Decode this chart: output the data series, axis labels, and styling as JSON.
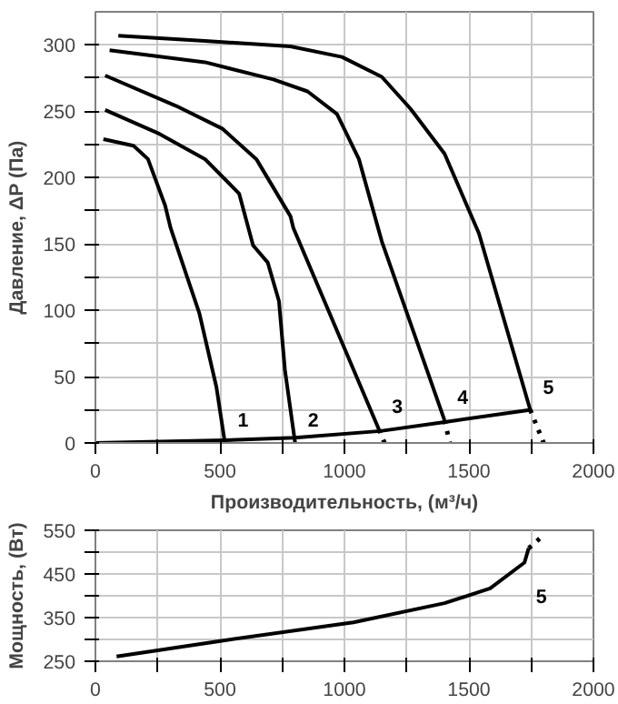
{
  "chart_data": [
    {
      "type": "line",
      "ylabel": "Давление, ΔP (Па)",
      "xlabel": "Производительность, (м³/ч)",
      "xlim": [
        0,
        2000
      ],
      "ylim": [
        0,
        325
      ],
      "xticks": [
        0,
        {
          "value": 250,
          "label": null
        },
        500,
        {
          "value": 750,
          "label": null
        },
        1000,
        {
          "value": 1250,
          "label": null
        },
        1500,
        {
          "value": 1750,
          "label": null
        },
        2000
      ],
      "yticks": [
        0,
        {
          "value": 25,
          "label": null
        },
        50,
        {
          "value": 75,
          "label": null
        },
        100,
        {
          "value": 125,
          "label": null
        },
        150,
        {
          "value": 175,
          "label": null
        },
        200,
        {
          "value": 225,
          "label": null
        },
        250,
        {
          "value": 275,
          "label": null
        },
        300
      ],
      "grid": true,
      "marker": "none",
      "line_style": "solid",
      "series": [
        {
          "name": "1",
          "color": "#000000",
          "x": [
            32,
            153,
            211,
            280,
            302,
            417,
            486,
            520
          ],
          "values": [
            229,
            224,
            214,
            179,
            162,
            98,
            42,
            0
          ]
        },
        {
          "name": "2",
          "color": "#000000",
          "x": [
            39,
            257,
            440,
            577,
            633,
            692,
            737,
            761,
            802
          ],
          "values": [
            251,
            233,
            214,
            188,
            149,
            136,
            107,
            55,
            0
          ]
        },
        {
          "name": "3",
          "color": "#000000",
          "x": [
            39,
            325,
            509,
            646,
            783,
            795,
            1139
          ],
          "values": [
            277,
            254,
            237,
            214,
            171,
            162,
            10
          ]
        },
        {
          "color": "#000000",
          "x": [
            1139,
            1161
          ],
          "values": [
            10,
            0
          ],
          "line_style": "dotted"
        },
        {
          "name": "4",
          "color": "#000000",
          "x": [
            57,
            440,
            715,
            852,
            970,
            1058,
            1150,
            1402
          ],
          "values": [
            296,
            287,
            274,
            265,
            248,
            214,
            152,
            17
          ]
        },
        {
          "color": "#000000",
          "x": [
            1402,
            1423
          ],
          "values": [
            17,
            0
          ],
          "line_style": "dotted"
        },
        {
          "name": "5",
          "color": "#000000",
          "x": [
            92,
            440,
            783,
            990,
            1150,
            1265,
            1402,
            1540,
            1746
          ],
          "values": [
            307,
            303,
            299,
            291,
            276,
            252,
            218,
            158,
            25
          ]
        },
        {
          "color": "#000000",
          "x": [
            1746,
            1800
          ],
          "values": [
            25,
            0
          ],
          "line_style": "dotted"
        },
        {
          "color": "#000000",
          "x": [
            0,
            520,
            800,
            1145,
            1410,
            1750
          ],
          "values": [
            0,
            2,
            4,
            9,
            16,
            25
          ]
        }
      ]
    },
    {
      "type": "line",
      "ylabel": "Мощность, (Вт)",
      "xlim": [
        0,
        2000
      ],
      "ylim": [
        250,
        550
      ],
      "xticks": [
        0,
        {
          "value": 250,
          "label": null
        },
        500,
        {
          "value": 750,
          "label": null
        },
        1000,
        {
          "value": 1250,
          "label": null
        },
        1500,
        {
          "value": 1750,
          "label": null
        },
        2000
      ],
      "yticks": [
        250,
        {
          "value": 300,
          "label": null
        },
        350,
        {
          "value": 400,
          "label": null
        },
        450,
        {
          "value": 500,
          "label": null
        },
        550
      ],
      "grid": true,
      "marker": "none",
      "line_style": "solid",
      "series": [
        {
          "name": "5",
          "color": "#000000",
          "x": [
            85,
            508,
            1036,
            1402,
            1585,
            1723,
            1740
          ],
          "values": [
            261,
            297,
            339,
            383,
            417,
            476,
            509
          ]
        },
        {
          "color": "#000000",
          "x": [
            1740,
            1800
          ],
          "values": [
            509,
            539
          ],
          "line_style": "dotted"
        }
      ]
    }
  ]
}
